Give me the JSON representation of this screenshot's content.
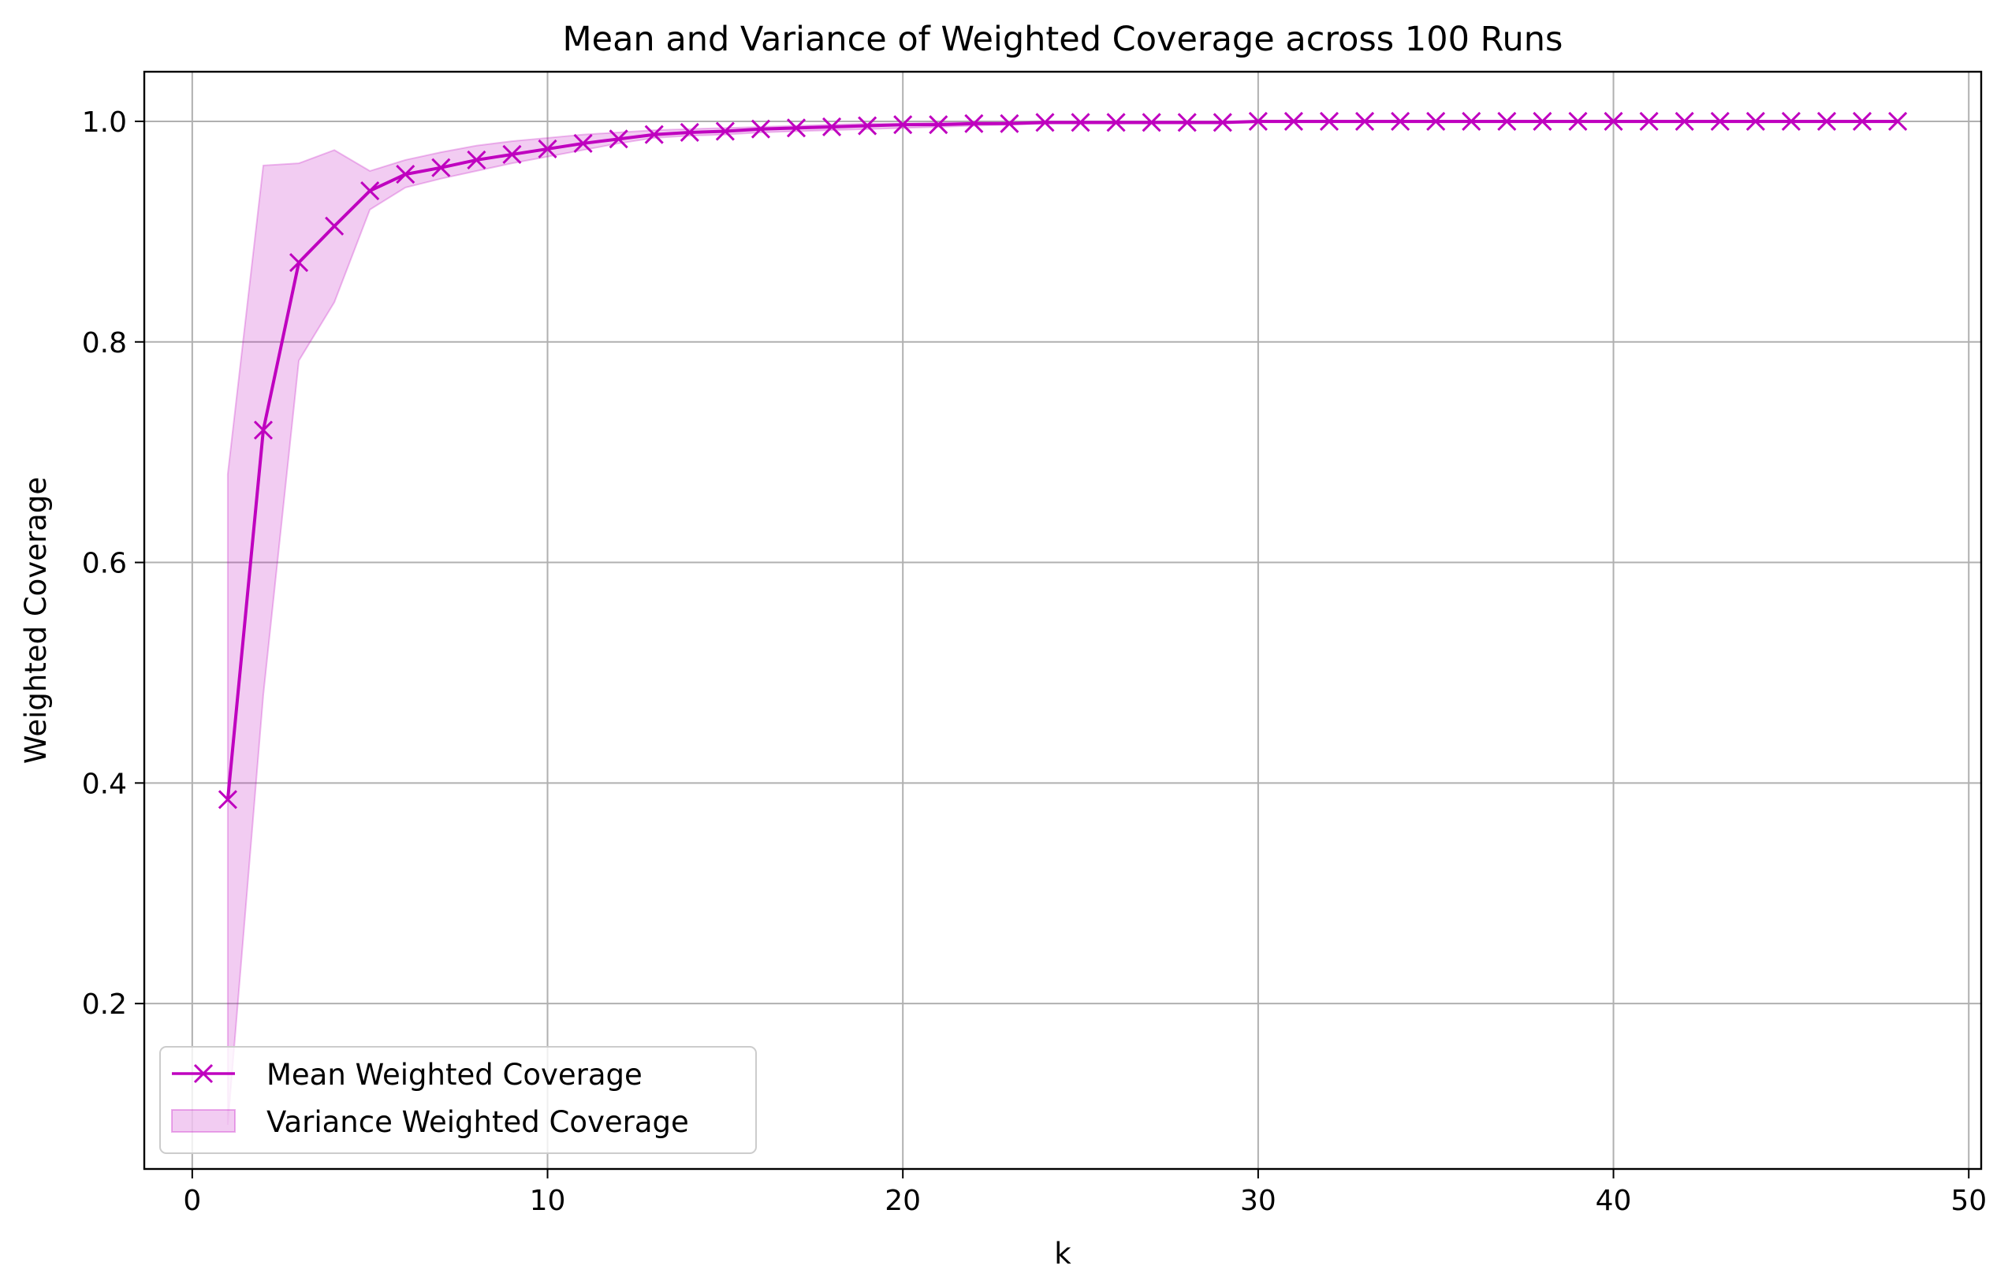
{
  "chart_data": {
    "type": "line",
    "title": "Mean and Variance of Weighted Coverage across 100 Runs",
    "xlabel": "k",
    "ylabel": "Weighted Coverage",
    "xlim": [
      -1.35,
      50.35
    ],
    "ylim": [
      0.05,
      1.045
    ],
    "xticks": [
      0,
      10,
      20,
      30,
      40,
      50
    ],
    "yticks": [
      0.2,
      0.4,
      0.6,
      0.8,
      1.0
    ],
    "xtick_labels": [
      "0",
      "10",
      "20",
      "30",
      "40",
      "50"
    ],
    "ytick_labels": [
      "0.2",
      "0.4",
      "0.6",
      "0.8",
      "1.0"
    ],
    "grid": true,
    "legend_position": "lower-left",
    "color": "#bf00bf",
    "fill_color": "#bf00bf",
    "x": [
      1,
      2,
      3,
      4,
      5,
      6,
      7,
      8,
      9,
      10,
      11,
      12,
      13,
      14,
      15,
      16,
      17,
      18,
      19,
      20,
      21,
      22,
      23,
      24,
      25,
      26,
      27,
      28,
      29,
      30,
      31,
      32,
      33,
      34,
      35,
      36,
      37,
      38,
      39,
      40,
      41,
      42,
      43,
      44,
      45,
      46,
      47,
      48
    ],
    "series": [
      {
        "name": "Mean Weighted Coverage",
        "kind": "line",
        "marker": "x",
        "values": [
          0.385,
          0.72,
          0.872,
          0.905,
          0.937,
          0.952,
          0.958,
          0.965,
          0.97,
          0.975,
          0.98,
          0.984,
          0.988,
          0.99,
          0.991,
          0.993,
          0.994,
          0.995,
          0.996,
          0.997,
          0.997,
          0.998,
          0.998,
          0.999,
          0.999,
          0.999,
          0.999,
          0.999,
          0.999,
          1.0,
          1.0,
          1.0,
          1.0,
          1.0,
          1.0,
          1.0,
          1.0,
          1.0,
          1.0,
          1.0,
          1.0,
          1.0,
          1.0,
          1.0,
          1.0,
          1.0,
          1.0,
          1.0
        ]
      },
      {
        "name": "Variance Weighted Coverage",
        "kind": "band",
        "lower": [
          0.09,
          0.48,
          0.783,
          0.836,
          0.92,
          0.94,
          0.948,
          0.955,
          0.962,
          0.968,
          0.974,
          0.98,
          0.985,
          0.987,
          0.988,
          0.99,
          0.991,
          0.992,
          0.993,
          0.994,
          0.995,
          0.996,
          0.997,
          0.998,
          0.998,
          0.998,
          0.998,
          0.998,
          0.998,
          0.999,
          0.999,
          0.999,
          0.999,
          0.999,
          0.999,
          0.999,
          0.999,
          0.999,
          0.999,
          0.999,
          0.999,
          0.999,
          0.999,
          0.999,
          0.999,
          0.999,
          0.999,
          0.999
        ],
        "upper": [
          0.68,
          0.96,
          0.962,
          0.974,
          0.955,
          0.965,
          0.972,
          0.978,
          0.982,
          0.985,
          0.988,
          0.99,
          0.992,
          0.993,
          0.994,
          0.995,
          0.996,
          0.997,
          0.998,
          0.998,
          0.999,
          0.999,
          0.999,
          1.0,
          1.0,
          1.0,
          1.0,
          1.0,
          1.0,
          1.0,
          1.0,
          1.0,
          1.0,
          1.0,
          1.0,
          1.0,
          1.0,
          1.0,
          1.0,
          1.0,
          1.0,
          1.0,
          1.0,
          1.0,
          1.0,
          1.0,
          1.0,
          1.0
        ]
      }
    ]
  }
}
